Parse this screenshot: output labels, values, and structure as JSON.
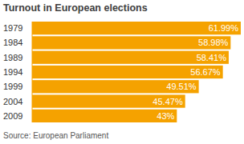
{
  "chart_data": {
    "type": "bar",
    "orientation": "horizontal",
    "title": "Turnout in European elections",
    "source": "Source: European Parliament",
    "categories": [
      "1979",
      "1984",
      "1989",
      "1994",
      "1999",
      "2004",
      "2009"
    ],
    "values": [
      61.99,
      58.98,
      58.41,
      56.67,
      49.51,
      45.47,
      43
    ],
    "value_labels": [
      "61.99%",
      "58.98%",
      "58.41%",
      "56.67%",
      "49.51%",
      "45.47%",
      "43%"
    ],
    "color": "#f5a200",
    "xlim": [
      0,
      62
    ],
    "data_labels": true,
    "tick_labels": "y",
    "grid": false
  }
}
